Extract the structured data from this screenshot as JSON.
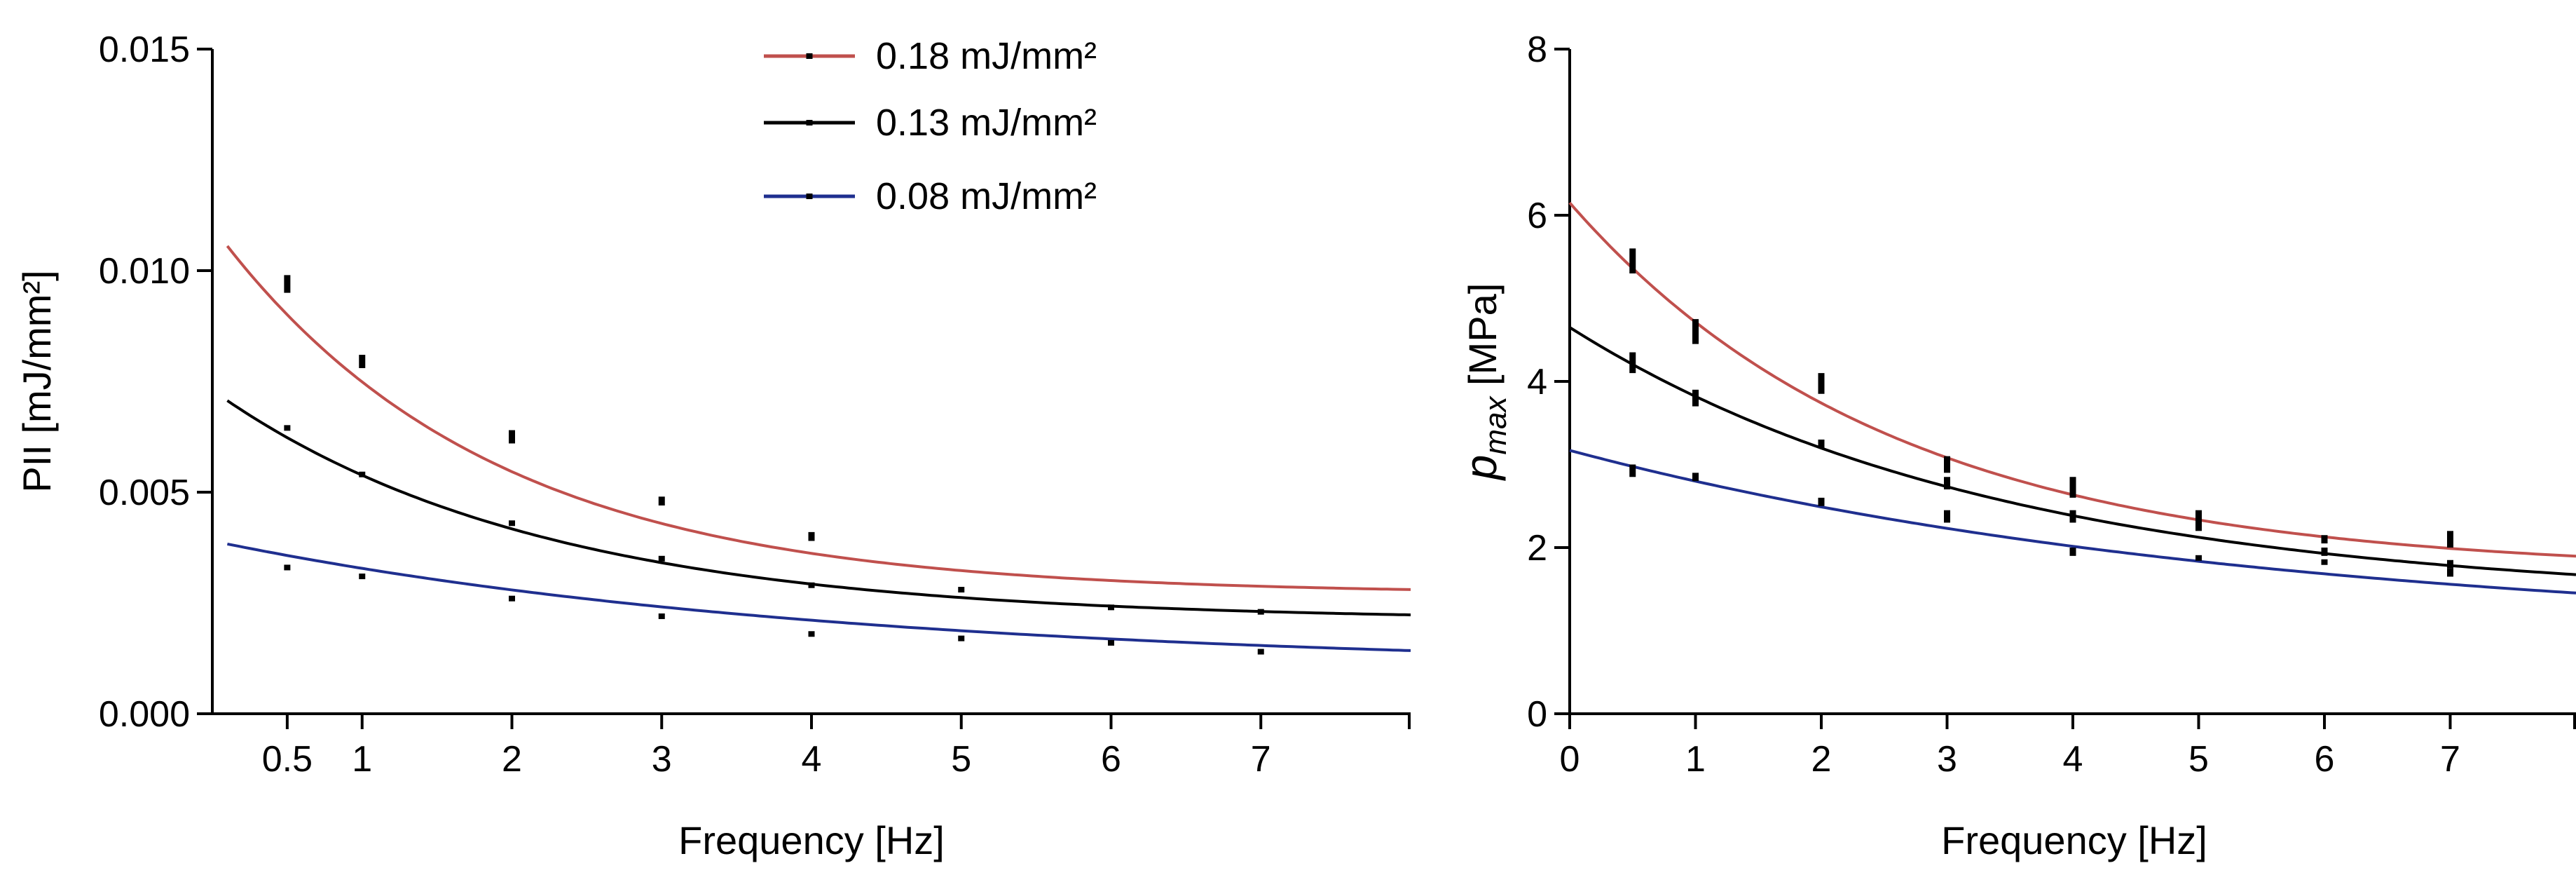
{
  "chart_data": [
    {
      "id": "pii",
      "type": "line",
      "title": "",
      "xlabel": "Frequency [Hz]",
      "ylabel": "PII [mJ/mm²]",
      "xlim": [
        0,
        8
      ],
      "ylim": [
        0,
        0.015
      ],
      "xticks": [
        0.5,
        1,
        2,
        3,
        4,
        5,
        6,
        7
      ],
      "xtick_labels": [
        "0.5",
        "1",
        "2",
        "3",
        "4",
        "5",
        "6",
        "7"
      ],
      "yticks": [
        0.0,
        0.005,
        0.01,
        0.015
      ],
      "ytick_labels": [
        "0.000",
        "0.005",
        "0.010",
        "0.015"
      ],
      "legend": {
        "placement": "top-center",
        "entries": [
          {
            "label": "0.18 mJ/mm²",
            "color": "#c0504d"
          },
          {
            "label": "0.13 mJ/mm²",
            "color": "#000000"
          },
          {
            "label": "0.08 mJ/mm²",
            "color": "#1f2f8f"
          }
        ]
      },
      "series": [
        {
          "name": "0.18 mJ/mm²",
          "color": "#c0504d",
          "fit": {
            "a": 0.0083,
            "b": 0.55,
            "c": 0.0027,
            "x_start": 0.1
          },
          "points": [
            {
              "x": 0.5,
              "lo": 0.0095,
              "hi": 0.0099
            },
            {
              "x": 1,
              "lo": 0.0078,
              "hi": 0.0081
            },
            {
              "x": 2,
              "lo": 0.0061,
              "hi": 0.0064
            },
            {
              "x": 3,
              "lo": 0.0047,
              "hi": 0.0049
            },
            {
              "x": 4,
              "lo": 0.0039,
              "hi": 0.0041
            }
          ]
        },
        {
          "name": "0.13 mJ/mm²",
          "color": "#000000",
          "fit": {
            "a": 0.0052,
            "b": 0.46,
            "c": 0.0021,
            "x_start": 0.1
          },
          "points": [
            {
              "x": 0.5,
              "lo": 0.0064,
              "hi": 0.0065
            },
            {
              "x": 1,
              "lo": 0.0054,
              "hi": 0.0054
            },
            {
              "x": 2,
              "lo": 0.0043,
              "hi": 0.0043
            },
            {
              "x": 3,
              "lo": 0.0035,
              "hi": 0.0035
            },
            {
              "x": 4,
              "lo": 0.0029,
              "hi": 0.0029
            },
            {
              "x": 5,
              "lo": 0.0028,
              "hi": 0.0028
            },
            {
              "x": 6,
              "lo": 0.0024,
              "hi": 0.0024
            },
            {
              "x": 7,
              "lo": 0.0023,
              "hi": 0.0023
            }
          ]
        },
        {
          "name": "0.08 mJ/mm²",
          "color": "#1f2f8f",
          "fit": {
            "a": 0.0029,
            "b": 0.24,
            "c": 0.001,
            "x_start": 0.1
          },
          "points": [
            {
              "x": 0.5,
              "lo": 0.0033,
              "hi": 0.0033
            },
            {
              "x": 1,
              "lo": 0.0031,
              "hi": 0.0031
            },
            {
              "x": 2,
              "lo": 0.0026,
              "hi": 0.0026
            },
            {
              "x": 3,
              "lo": 0.0022,
              "hi": 0.0022
            },
            {
              "x": 4,
              "lo": 0.0018,
              "hi": 0.0018
            },
            {
              "x": 5,
              "lo": 0.0017,
              "hi": 0.0017
            },
            {
              "x": 6,
              "lo": 0.0016,
              "hi": 0.0016
            },
            {
              "x": 7,
              "lo": 0.0014,
              "hi": 0.0014
            }
          ]
        }
      ]
    },
    {
      "id": "pmax",
      "type": "line",
      "title": "",
      "xlabel": "Frequency [Hz]",
      "ylabel_main": "p",
      "ylabel_sub": "max",
      "ylabel_unit": " [MPa]",
      "xlim": [
        0,
        8
      ],
      "ylim": [
        0,
        8
      ],
      "xticks": [
        0,
        1,
        2,
        3,
        4,
        5,
        6,
        7
      ],
      "xtick_labels": [
        "0",
        "1",
        "2",
        "3",
        "4",
        "5",
        "6",
        "7"
      ],
      "yticks": [
        0,
        2,
        4,
        6,
        8
      ],
      "ytick_labels": [
        "0",
        "2",
        "4",
        "6",
        "8"
      ],
      "series": [
        {
          "name": "0.18 mJ/mm²",
          "color": "#c0504d",
          "fit": {
            "a": 4.45,
            "b": 0.39,
            "c": 1.7,
            "x_start": 0
          },
          "points": [
            {
              "x": 0.5,
              "lo": 5.3,
              "hi": 5.6
            },
            {
              "x": 1,
              "lo": 4.45,
              "hi": 4.75
            },
            {
              "x": 2,
              "lo": 3.85,
              "hi": 4.1
            },
            {
              "x": 3,
              "lo": 2.9,
              "hi": 3.1
            },
            {
              "x": 4,
              "lo": 2.6,
              "hi": 2.85
            },
            {
              "x": 5,
              "lo": 2.25,
              "hi": 2.45
            },
            {
              "x": 6,
              "lo": 2.05,
              "hi": 2.15
            },
            {
              "x": 7,
              "lo": 2.0,
              "hi": 2.2
            }
          ]
        },
        {
          "name": "0.13 mJ/mm²",
          "color": "#000000",
          "fit": {
            "a": 3.3,
            "b": 0.29,
            "c": 1.35,
            "x_start": 0
          },
          "points": [
            {
              "x": 0.5,
              "lo": 4.1,
              "hi": 4.35
            },
            {
              "x": 1,
              "lo": 3.7,
              "hi": 3.9
            },
            {
              "x": 2,
              "lo": 3.2,
              "hi": 3.3
            },
            {
              "x": 3,
              "lo": 2.7,
              "hi": 2.85
            },
            {
              "x": 4,
              "lo": 2.3,
              "hi": 2.45
            },
            {
              "x": 5,
              "lo": 2.2,
              "hi": 2.3
            },
            {
              "x": 6,
              "lo": 1.9,
              "hi": 2.0
            },
            {
              "x": 7,
              "lo": 1.75,
              "hi": 1.85
            }
          ]
        },
        {
          "name": "0.08 mJ/mm²",
          "color": "#1f2f8f",
          "fit": {
            "a": 2.25,
            "b": 0.18,
            "c": 0.92,
            "x_start": 0
          },
          "points": [
            {
              "x": 0.5,
              "lo": 2.85,
              "hi": 3.0
            },
            {
              "x": 1,
              "lo": 2.8,
              "hi": 2.9
            },
            {
              "x": 2,
              "lo": 2.5,
              "hi": 2.6
            },
            {
              "x": 3,
              "lo": 2.3,
              "hi": 2.45
            },
            {
              "x": 4,
              "lo": 1.9,
              "hi": 2.0
            },
            {
              "x": 5,
              "lo": 1.85,
              "hi": 1.9
            },
            {
              "x": 6,
              "lo": 1.8,
              "hi": 1.85
            },
            {
              "x": 7,
              "lo": 1.65,
              "hi": 1.75
            }
          ]
        }
      ]
    }
  ]
}
